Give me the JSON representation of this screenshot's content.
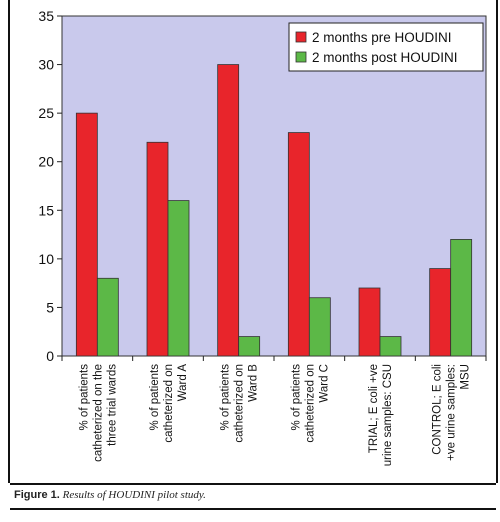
{
  "chart_data": {
    "type": "bar",
    "title": "",
    "xlabel": "",
    "ylabel": "",
    "ylim": [
      0,
      35
    ],
    "yticks": [
      "0",
      "5",
      "10",
      "15",
      "20",
      "25",
      "30",
      "35"
    ],
    "grid": false,
    "legend_position": "top-right",
    "categories": [
      [
        "% of patients",
        "catheterized on the",
        "three trial wards"
      ],
      [
        "% of patients",
        "catheterized on",
        "Ward A"
      ],
      [
        "% of patients",
        "catheterized on",
        "Ward B"
      ],
      [
        "% of patients",
        "catheterized on",
        "Ward C"
      ],
      [
        "TRIAL; E coli +ve",
        "urine samples: CSU"
      ],
      [
        "CONTROL; E coli",
        "+ve urine samples:",
        "MSU"
      ]
    ],
    "series": [
      {
        "name": "2 months pre HOUDINI",
        "color": "#e8252b",
        "values": [
          25,
          22,
          30,
          23,
          7,
          9
        ]
      },
      {
        "name": "2 months post HOUDINI",
        "color": "#5cb847",
        "values": [
          8,
          16,
          2,
          6,
          2,
          12
        ]
      }
    ],
    "plot_background": "#c9c9ec"
  },
  "caption": {
    "label": "Figure 1.",
    "text": "Results of HOUDINI pilot study."
  }
}
